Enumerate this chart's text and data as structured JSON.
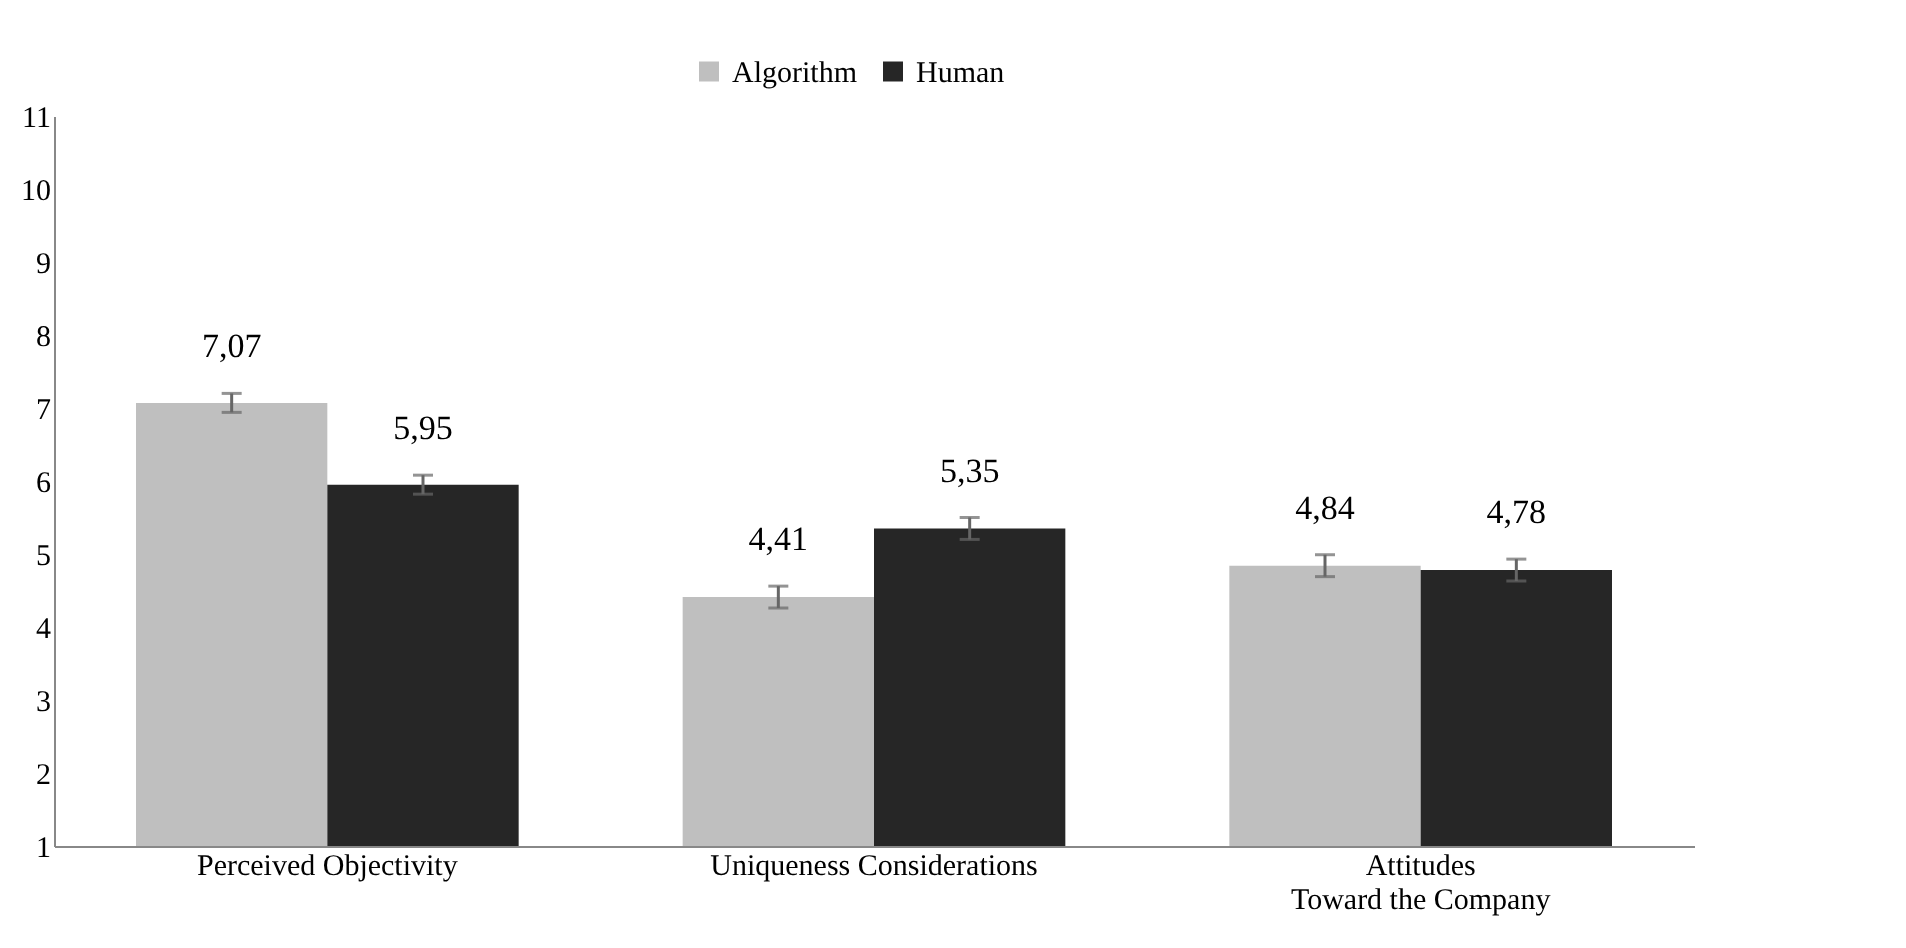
{
  "chart_data": {
    "type": "bar",
    "categories": [
      "Perceived Objectivity",
      "Uniqueness Considerations",
      "Attitudes\nToward the Company"
    ],
    "series": [
      {
        "name": "Algorithm",
        "color": "#bfbfbf",
        "values": [
          7.07,
          4.41,
          4.84
        ],
        "value_labels": [
          "7,07",
          "4,41",
          "4,84"
        ],
        "errors": [
          0.13,
          0.15,
          0.15
        ]
      },
      {
        "name": "Human",
        "color": "#262626",
        "values": [
          5.95,
          5.35,
          4.78
        ],
        "value_labels": [
          "5,95",
          "5,35",
          "4,78"
        ],
        "errors": [
          0.13,
          0.15,
          0.15
        ]
      }
    ],
    "ylim": [
      1,
      11
    ],
    "yticks": [
      1,
      2,
      3,
      4,
      5,
      6,
      7,
      8,
      9,
      10,
      11
    ],
    "grid": false,
    "legend": "top"
  }
}
